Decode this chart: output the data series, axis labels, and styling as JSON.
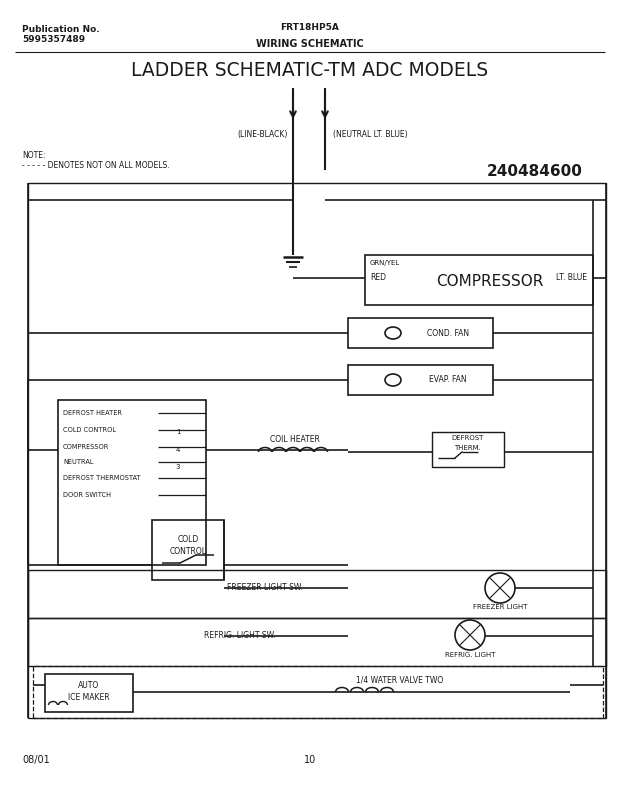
{
  "page_width": 6.2,
  "page_height": 7.94,
  "bg_color": "#ffffff",
  "pub_no": "Publication No.",
  "pub_num": "5995357489",
  "model": "FRT18HP5A",
  "section_title": "WIRING SCHEMATIC",
  "main_title": "LADDER SCHEMATIC-TM ADC MODELS",
  "part_no": "240484600",
  "date": "08/01",
  "page": "10",
  "note_line1": "NOTE:",
  "note_line2": "- - - - - DENOTES NOT ON ALL MODELS.",
  "line_black_label": "(LINE-BLACK)",
  "neutral_label": "(NEUTRAL LT. BLUE)",
  "compressor_label": "COMPRESSOR",
  "lt_blue_label": "LT. BLUE",
  "red_label": "RED",
  "grn_yel_label": "GRN/YEL",
  "cond_fan_label": "COND. FAN",
  "evap_fan_label": "EVAP. FAN",
  "defrost_heater_label": "DEFROST HEATER",
  "cold_control_label": "COLD CONTROL",
  "compressor_sw_label": "COMPRESSOR",
  "neutral_sw_label": "NEUTRAL",
  "defrost_therm_label": "DEFROST THERMOSTAT",
  "door_switch_label": "DOOR SWITCH",
  "cold_control2_line1": "COLD",
  "cold_control2_line2": "CONTROL",
  "coil_heater_label": "COIL HEATER",
  "defrost_therm2_line1": "DEFROST",
  "defrost_therm2_line2": "THERM.",
  "freezer_light_sw_label": "FREEZER LIGHT SW.",
  "freezer_light_label": "FREEZER LIGHT",
  "refrig_light_sw_label": "REFRIG. LIGHT SW.",
  "refrig_light_label": "REFRIG. LIGHT",
  "auto_ice_maker_line1": "AUTO",
  "auto_ice_maker_line2": "ICE MAKER",
  "water_valve_label": "1/4 WATER VALVE TWO",
  "line_color": "#1a1a1a",
  "text_color": "#1a1a1a"
}
